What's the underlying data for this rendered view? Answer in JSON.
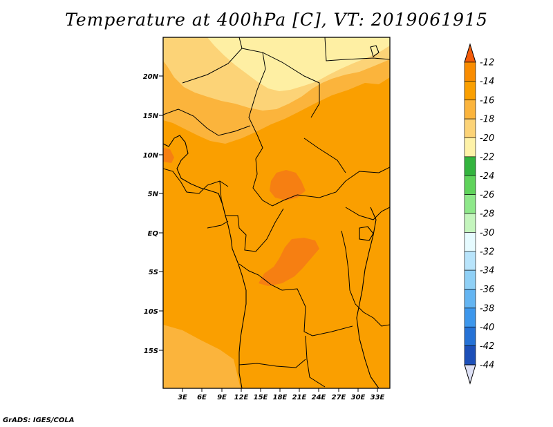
{
  "title": "Temperature at 400hPa [C], VT: 2019061915",
  "credit": "GrADS: IGES/COLA",
  "map": {
    "lat_ticks": [
      "20N",
      "15N",
      "10N",
      "5N",
      "EQ",
      "5S",
      "10S",
      "15S"
    ],
    "lon_ticks": [
      "3E",
      "6E",
      "9E",
      "12E",
      "15E",
      "18E",
      "21E",
      "24E",
      "27E",
      "30E",
      "33E"
    ]
  },
  "colorbar": {
    "labels": [
      "-12",
      "-14",
      "-16",
      "-18",
      "-20",
      "-22",
      "-24",
      "-26",
      "-28",
      "-30",
      "-32",
      "-34",
      "-36",
      "-38",
      "-40",
      "-42",
      "-44"
    ],
    "colors": [
      "#f45c0a",
      "#f98c00",
      "#fa9f00",
      "#fbb43c",
      "#fcd377",
      "#fef2a8",
      "#33b43e",
      "#5fd35b",
      "#8ee88a",
      "#c4f5bd",
      "#e6fbff",
      "#b8e4fb",
      "#8fd0f6",
      "#64b5f2",
      "#3d97ec",
      "#2572d6",
      "#1c4fb8",
      "#0e2280",
      "#dde0f5"
    ]
  },
  "style": {
    "field_base": "#fa9f00",
    "field_light": "#fbb43c",
    "field_lighter": "#fcd377",
    "field_palest": "#feefa3",
    "field_warm": "#f67f12"
  }
}
